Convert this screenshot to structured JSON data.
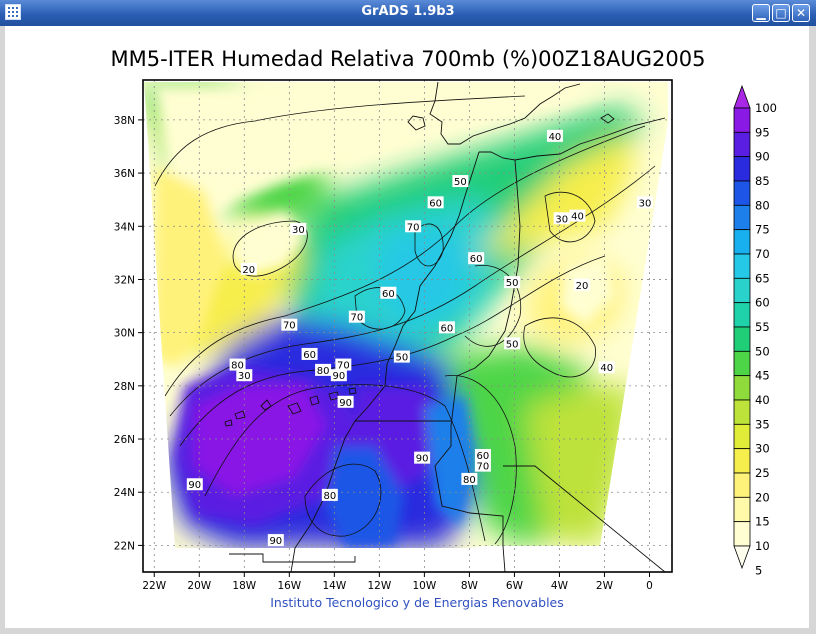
{
  "window": {
    "title": "GrADS 1.9b3",
    "minimize_glyph": "▁",
    "maximize_glyph": "□",
    "close_glyph": "✕",
    "app_icon": "grid-icon"
  },
  "chart_data": {
    "type": "heatmap",
    "title": "MM5-ITER Humedad Relativa 700mb (%)00Z18AUG2005",
    "xlabel": "",
    "ylabel": "",
    "xlim": [
      -22.5,
      1
    ],
    "ylim": [
      21,
      39.5
    ],
    "x_ticks": [
      "22W",
      "20W",
      "18W",
      "16W",
      "14W",
      "12W",
      "10W",
      "8W",
      "6W",
      "4W",
      "2W",
      "0"
    ],
    "y_ticks": [
      "22N",
      "24N",
      "26N",
      "28N",
      "30N",
      "32N",
      "34N",
      "36N",
      "38N"
    ],
    "grid": true,
    "colorbar": {
      "placement": "right",
      "levels": [
        5,
        10,
        15,
        20,
        25,
        30,
        35,
        40,
        45,
        50,
        55,
        60,
        65,
        70,
        75,
        80,
        85,
        90,
        95,
        100
      ],
      "colors": [
        "#fffff0",
        "#fffed2",
        "#fffaa9",
        "#fff27a",
        "#f6ee4c",
        "#e0ec37",
        "#bde23a",
        "#8fdb3c",
        "#4ed547",
        "#20ce78",
        "#1fd2aa",
        "#29d3cc",
        "#25c8e6",
        "#18b0ef",
        "#1c7fea",
        "#1d56e6",
        "#2a2bdf",
        "#5a1ee2",
        "#8a19e6",
        "#a828e6"
      ],
      "labels": [
        "5",
        "10",
        "15",
        "20",
        "25",
        "30",
        "35",
        "40",
        "45",
        "50",
        "55",
        "60",
        "65",
        "70",
        "75",
        "80",
        "85",
        "90",
        "95",
        "100"
      ]
    },
    "contour_labels": [
      {
        "text": "40",
        "lon": -4.2,
        "lat": 37.4
      },
      {
        "text": "50",
        "lon": -8.4,
        "lat": 35.7
      },
      {
        "text": "60",
        "lon": -9.5,
        "lat": 34.9
      },
      {
        "text": "30",
        "lon": -15.6,
        "lat": 33.9
      },
      {
        "text": "70",
        "lon": -10.5,
        "lat": 34.0
      },
      {
        "text": "40",
        "lon": -3.2,
        "lat": 34.4
      },
      {
        "text": "30",
        "lon": -3.9,
        "lat": 34.3
      },
      {
        "text": "30",
        "lon": -0.2,
        "lat": 34.9
      },
      {
        "text": "60",
        "lon": -7.7,
        "lat": 32.8
      },
      {
        "text": "20",
        "lon": -17.8,
        "lat": 32.4
      },
      {
        "text": "50",
        "lon": -6.1,
        "lat": 31.9
      },
      {
        "text": "20",
        "lon": -3.0,
        "lat": 31.8
      },
      {
        "text": "60",
        "lon": -11.6,
        "lat": 31.5
      },
      {
        "text": "70",
        "lon": -13.0,
        "lat": 30.6
      },
      {
        "text": "70",
        "lon": -16.0,
        "lat": 30.3
      },
      {
        "text": "60",
        "lon": -9.0,
        "lat": 30.2
      },
      {
        "text": "60",
        "lon": -15.1,
        "lat": 29.2
      },
      {
        "text": "50",
        "lon": -11.0,
        "lat": 29.1
      },
      {
        "text": "50",
        "lon": -6.1,
        "lat": 29.6
      },
      {
        "text": "70",
        "lon": -13.6,
        "lat": 28.8
      },
      {
        "text": "80",
        "lon": -18.3,
        "lat": 28.8
      },
      {
        "text": "80",
        "lon": -14.5,
        "lat": 28.6
      },
      {
        "text": "90",
        "lon": -13.8,
        "lat": 28.4
      },
      {
        "text": "30",
        "lon": -18.0,
        "lat": 28.4
      },
      {
        "text": "40",
        "lon": -1.9,
        "lat": 28.7
      },
      {
        "text": "90",
        "lon": -13.5,
        "lat": 27.4
      },
      {
        "text": "60",
        "lon": -7.4,
        "lat": 25.4
      },
      {
        "text": "70",
        "lon": -7.4,
        "lat": 25.0
      },
      {
        "text": "90",
        "lon": -10.1,
        "lat": 25.3
      },
      {
        "text": "80",
        "lon": -8.0,
        "lat": 24.5
      },
      {
        "text": "90",
        "lon": -20.2,
        "lat": 24.3
      },
      {
        "text": "80",
        "lon": -14.2,
        "lat": 23.9
      },
      {
        "text": "90",
        "lon": -16.6,
        "lat": 22.2
      }
    ],
    "footer": "Instituto Tecnologico y de Energias Renovables"
  }
}
